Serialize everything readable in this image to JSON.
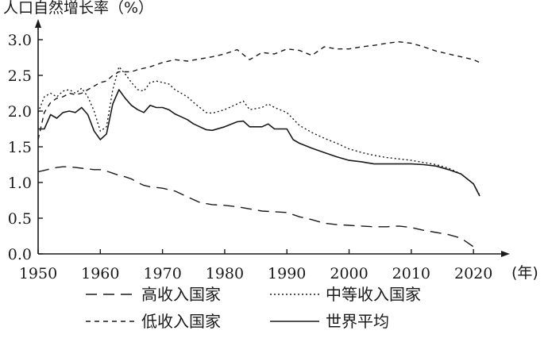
{
  "chart_data": {
    "type": "line",
    "ylabel": "人口自然增长率（%）",
    "xlabel": "(年)",
    "xlim": [
      1950,
      2021
    ],
    "ylim": [
      0,
      3.0
    ],
    "x_ticks": [
      1950,
      1960,
      1970,
      1980,
      1990,
      2000,
      2010,
      2020
    ],
    "y_ticks": [
      "0.0",
      "0.5",
      "1.0",
      "1.5",
      "2.0",
      "2.5",
      "3.0"
    ],
    "grid": false,
    "legend_position": "bottom",
    "series": [
      {
        "name": "高收入国家",
        "style": "dash-long",
        "x": [
          1950,
          1951,
          1952,
          1953,
          1954,
          1955,
          1956,
          1957,
          1958,
          1959,
          1960,
          1961,
          1962,
          1963,
          1964,
          1965,
          1966,
          1967,
          1968,
          1969,
          1970,
          1972,
          1974,
          1976,
          1978,
          1980,
          1982,
          1984,
          1986,
          1988,
          1990,
          1992,
          1994,
          1996,
          1998,
          2000,
          2002,
          2004,
          2006,
          2008,
          2010,
          2012,
          2014,
          2016,
          2018,
          2020
        ],
        "y": [
          1.15,
          1.17,
          1.19,
          1.21,
          1.22,
          1.22,
          1.21,
          1.2,
          1.19,
          1.18,
          1.18,
          1.16,
          1.13,
          1.1,
          1.08,
          1.05,
          1.0,
          0.96,
          0.94,
          0.93,
          0.92,
          0.88,
          0.8,
          0.72,
          0.69,
          0.68,
          0.66,
          0.63,
          0.6,
          0.59,
          0.58,
          0.52,
          0.48,
          0.43,
          0.41,
          0.4,
          0.39,
          0.38,
          0.38,
          0.39,
          0.37,
          0.33,
          0.3,
          0.27,
          0.22,
          0.1
        ]
      },
      {
        "name": "中等收入国家",
        "style": "dotted",
        "x": [
          1950,
          1951,
          1952,
          1953,
          1954,
          1955,
          1956,
          1957,
          1958,
          1959,
          1960,
          1961,
          1962,
          1963,
          1964,
          1965,
          1966,
          1967,
          1968,
          1969,
          1970,
          1971,
          1972,
          1973,
          1974,
          1975,
          1976,
          1977,
          1978,
          1980,
          1982,
          1983,
          1984,
          1986,
          1987,
          1988,
          1990,
          1992,
          1994,
          1996,
          1998,
          2000,
          2002,
          2004,
          2006,
          2008,
          2010,
          2012,
          2014,
          2016,
          2018,
          2020,
          2021
        ],
        "y": [
          1.98,
          2.2,
          2.25,
          2.2,
          2.28,
          2.3,
          2.25,
          2.32,
          2.2,
          2.0,
          1.72,
          1.78,
          2.3,
          2.62,
          2.52,
          2.4,
          2.3,
          2.28,
          2.4,
          2.42,
          2.4,
          2.38,
          2.3,
          2.25,
          2.2,
          2.12,
          2.05,
          1.98,
          1.97,
          2.02,
          2.1,
          2.14,
          2.02,
          2.05,
          2.1,
          2.05,
          1.98,
          1.8,
          1.7,
          1.62,
          1.55,
          1.47,
          1.42,
          1.38,
          1.35,
          1.33,
          1.31,
          1.28,
          1.25,
          1.2,
          1.12,
          0.98,
          0.82
        ]
      },
      {
        "name": "低收入国家",
        "style": "dash-short",
        "x": [
          1950,
          1951,
          1952,
          1953,
          1954,
          1955,
          1956,
          1957,
          1958,
          1959,
          1960,
          1961,
          1962,
          1963,
          1964,
          1965,
          1966,
          1968,
          1970,
          1972,
          1974,
          1976,
          1978,
          1980,
          1982,
          1984,
          1986,
          1988,
          1990,
          1992,
          1994,
          1996,
          1998,
          2000,
          2002,
          2004,
          2006,
          2008,
          2010,
          2012,
          2014,
          2016,
          2018,
          2020,
          2021
        ],
        "y": [
          1.6,
          1.98,
          2.12,
          2.18,
          2.2,
          2.25,
          2.23,
          2.25,
          2.3,
          2.35,
          2.4,
          2.42,
          2.5,
          2.55,
          2.55,
          2.55,
          2.58,
          2.62,
          2.68,
          2.72,
          2.7,
          2.73,
          2.76,
          2.8,
          2.86,
          2.72,
          2.82,
          2.8,
          2.87,
          2.85,
          2.78,
          2.9,
          2.87,
          2.87,
          2.9,
          2.92,
          2.95,
          2.97,
          2.95,
          2.9,
          2.84,
          2.8,
          2.76,
          2.72,
          2.68
        ]
      },
      {
        "name": "世界平均",
        "style": "solid",
        "x": [
          1950,
          1951,
          1952,
          1953,
          1954,
          1955,
          1956,
          1957,
          1958,
          1959,
          1960,
          1961,
          1962,
          1963,
          1964,
          1965,
          1966,
          1967,
          1968,
          1969,
          1970,
          1971,
          1972,
          1973,
          1974,
          1975,
          1976,
          1977,
          1978,
          1980,
          1982,
          1983,
          1984,
          1986,
          1987,
          1988,
          1990,
          1991,
          1992,
          1994,
          1996,
          1998,
          2000,
          2002,
          2004,
          2006,
          2008,
          2010,
          2012,
          2014,
          2016,
          2018,
          2020,
          2021
        ],
        "y": [
          1.75,
          1.75,
          1.95,
          1.9,
          1.98,
          2.0,
          1.98,
          2.05,
          1.95,
          1.72,
          1.6,
          1.68,
          2.1,
          2.3,
          2.18,
          2.08,
          2.02,
          1.98,
          2.08,
          2.05,
          2.05,
          2.02,
          1.96,
          1.92,
          1.88,
          1.82,
          1.78,
          1.74,
          1.73,
          1.78,
          1.85,
          1.86,
          1.78,
          1.78,
          1.82,
          1.75,
          1.75,
          1.6,
          1.55,
          1.48,
          1.42,
          1.36,
          1.31,
          1.29,
          1.26,
          1.26,
          1.26,
          1.26,
          1.25,
          1.23,
          1.18,
          1.12,
          0.98,
          0.81
        ]
      }
    ]
  }
}
